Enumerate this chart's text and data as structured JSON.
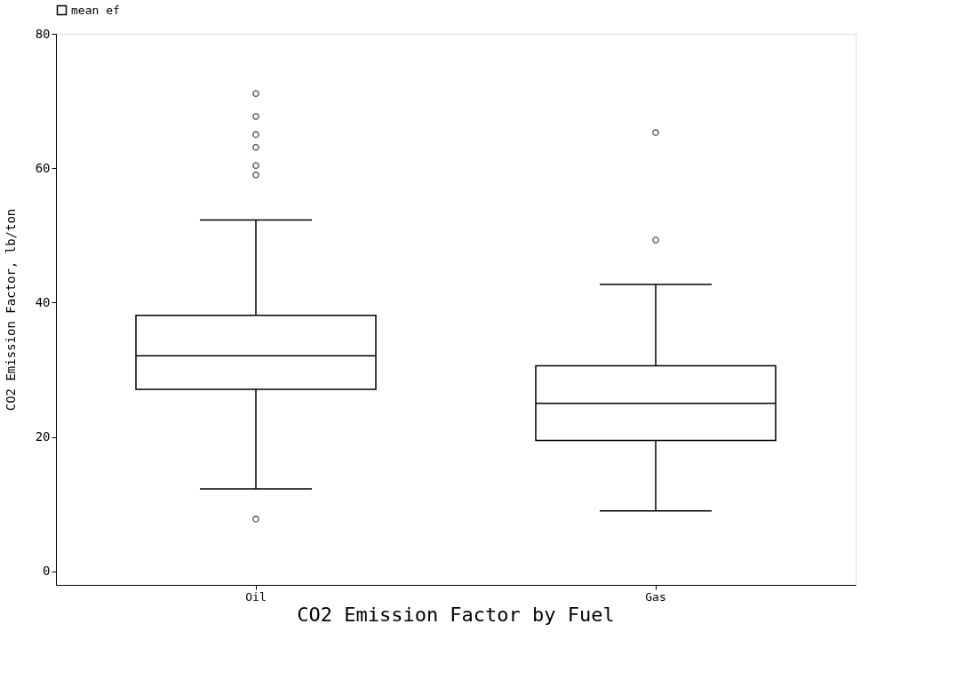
{
  "chart_data": {
    "type": "box",
    "title": "CO2 Emission Factor by Fuel",
    "ylabel": "CO2 Emission Factor, lb/ton",
    "categories": [
      "Oil",
      "Gas"
    ],
    "series": [
      {
        "name": "mean ef",
        "color": "#000000",
        "boxes": [
          {
            "low": 12.3,
            "q1": 27.1,
            "median": 32.1,
            "q3": 38.1,
            "high": 52.3,
            "outliers": [
              7.8,
              59.0,
              60.4,
              63.1,
              65.0,
              67.7,
              71.1
            ]
          },
          {
            "low": 9.0,
            "q1": 19.5,
            "median": 25.0,
            "q3": 30.6,
            "high": 42.7,
            "outliers": [
              49.3,
              65.3
            ]
          }
        ]
      }
    ],
    "ylim": [
      -2,
      80
    ],
    "yticks": [
      0,
      20,
      40,
      60,
      80
    ],
    "grid": false,
    "legend": "top left"
  }
}
